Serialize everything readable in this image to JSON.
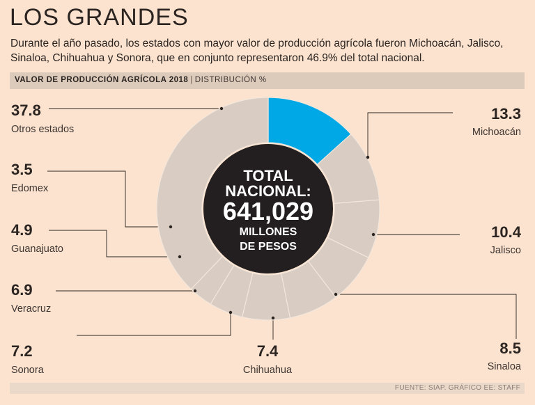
{
  "header": {
    "title": "LOS GRANDES",
    "subtitle": "Durante el año pasado, los estados con mayor valor de producción agrícola fueron Michoacán, Jalisco, Sinaloa, Chihuahua y Sonora, que en conjunto representaron 46.9% del total nacional."
  },
  "band": {
    "strong": "VALOR DE PRODUCCIÓN AGRÍCOLA 2018",
    "separator": "|",
    "light": "DISTRIBUCIÓN %"
  },
  "center": {
    "line1": "TOTAL",
    "line2": "NACIONAL:",
    "value": "641,029",
    "line3": "MILLONES",
    "line4": "DE PESOS"
  },
  "footer": {
    "source": "FUENTE: SIAP. GRÁFICO EE: STAFF"
  },
  "chart_data": {
    "type": "pie",
    "title": "VALOR DE PRODUCCIÓN AGRÍCOLA 2018",
    "subtitle": "DISTRIBUCIÓN %",
    "unit": "%",
    "total": "641,029 MILLONES DE PESOS",
    "slices": [
      {
        "label": "Michoacán",
        "value": 13.3,
        "display": "13.3",
        "highlight": true
      },
      {
        "label": "Jalisco",
        "value": 10.4,
        "display": "10.4"
      },
      {
        "label": "Sinaloa",
        "value": 8.5,
        "display": "8.5"
      },
      {
        "label": "Chihuahua",
        "value": 7.4,
        "display": "7.4"
      },
      {
        "label": "Sonora",
        "value": 7.2,
        "display": "7.2"
      },
      {
        "label": "Veracruz",
        "value": 6.9,
        "display": "6.9"
      },
      {
        "label": "Guanajuato",
        "value": 4.9,
        "display": "4.9"
      },
      {
        "label": "Edomex",
        "value": 3.5,
        "display": "3.5"
      },
      {
        "label": "Otros estados",
        "value": 37.8,
        "display": "37.8"
      }
    ],
    "colors": {
      "highlight": "#00a9e6",
      "default": "#d8ccc3",
      "border": "#f3e6db",
      "center": "#231f20"
    }
  }
}
